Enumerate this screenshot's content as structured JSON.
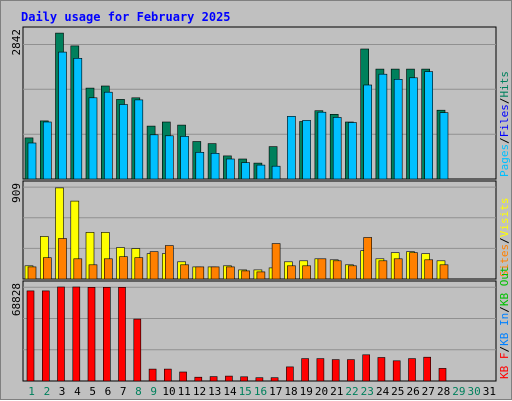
{
  "chart_data": {
    "type": "bar",
    "title": "Daily usage for February 2025",
    "days": [
      "1",
      "2",
      "3",
      "4",
      "5",
      "6",
      "7",
      "8",
      "9",
      "10",
      "11",
      "12",
      "13",
      "14",
      "15",
      "16",
      "17",
      "18",
      "19",
      "20",
      "21",
      "22",
      "23",
      "24",
      "25",
      "26",
      "27",
      "28",
      "29",
      "30",
      "31"
    ],
    "weekend_days": [
      "1",
      "2",
      "8",
      "9",
      "15",
      "16",
      "22",
      "23",
      "29",
      "30"
    ],
    "colors": {
      "hits": "#00805c",
      "files": "#0000ff",
      "pages": "#00c0ff",
      "visits": "#ffff00",
      "sites": "#ff8000",
      "kb_in": "#0080ff",
      "kb_out": "#00c000",
      "kb_f": "#ff0000",
      "kb": "#ff0000",
      "title": "#0000ff",
      "weekday": "#000000",
      "weekend": "#00805c"
    },
    "panels": [
      {
        "id": "hits",
        "max_label": "2842",
        "max": 2842,
        "legend": [
          {
            "text": "Pages",
            "color": "#00c0ff"
          },
          {
            "text": "/",
            "color": "#000000"
          },
          {
            "text": "Files",
            "color": "#0000ff"
          },
          {
            "text": "/",
            "color": "#000000"
          },
          {
            "text": "Hits",
            "color": "#00805c"
          }
        ],
        "series": [
          {
            "key": "hits",
            "values": [
              800,
              1130,
              2840,
              2590,
              1770,
              1810,
              1550,
              1580,
              1030,
              1110,
              1050,
              730,
              690,
              450,
              390,
              310,
              630,
              0,
              1120,
              1330,
              1260,
              1110,
              2530,
              2140,
              2140,
              2140,
              2140,
              1340,
              0,
              0,
              0
            ]
          },
          {
            "key": "pages",
            "values": [
              700,
              1110,
              2470,
              2350,
              1580,
              1690,
              1450,
              1540,
              860,
              840,
              830,
              520,
              500,
              390,
              320,
              270,
              250,
              1220,
              1140,
              1300,
              1200,
              1100,
              1830,
              2040,
              1940,
              1970,
              2090,
              1290,
              0,
              0,
              0
            ]
          }
        ]
      },
      {
        "id": "visits",
        "max_label": "909",
        "max": 909,
        "legend": [
          {
            "text": "Sites",
            "color": "#ff8000"
          },
          {
            "text": "/",
            "color": "#000000"
          },
          {
            "text": "Visits",
            "color": "#ffff00"
          }
        ],
        "series": [
          {
            "key": "visits",
            "values": [
              130,
              420,
              900,
              770,
              460,
              460,
              310,
              300,
              250,
              250,
              170,
              120,
              120,
              130,
              90,
              90,
              110,
              170,
              180,
              200,
              190,
              140,
              280,
              200,
              260,
              270,
              250,
              180,
              0,
              0,
              0
            ]
          },
          {
            "key": "sites",
            "values": [
              120,
              210,
              400,
              200,
              140,
              200,
              220,
              210,
              270,
              330,
              140,
              120,
              120,
              120,
              80,
              70,
              350,
              130,
              130,
              200,
              180,
              130,
              410,
              180,
              200,
              260,
              190,
              140,
              0,
              0,
              0
            ]
          }
        ]
      },
      {
        "id": "kbytes",
        "max_label": "68828",
        "max": 68828,
        "legend": [
          {
            "text": "KB F",
            "color": "#ff0000"
          },
          {
            "text": "/",
            "color": "#000000"
          },
          {
            "text": "KB In",
            "color": "#0080ff"
          },
          {
            "text": "/",
            "color": "#000000"
          },
          {
            "text": "KB Out",
            "color": "#00c000"
          }
        ],
        "series": [
          {
            "key": "kb_f",
            "values": [
              66000,
              66000,
              68800,
              68800,
              68600,
              68600,
              68600,
              45300,
              8700,
              8700,
              6600,
              2800,
              3200,
              3600,
              3100,
              2400,
              2400,
              10300,
              16400,
              16400,
              15700,
              15700,
              19200,
              17200,
              14800,
              16400,
              17400,
              9200,
              0,
              0,
              0
            ]
          }
        ]
      }
    ]
  }
}
